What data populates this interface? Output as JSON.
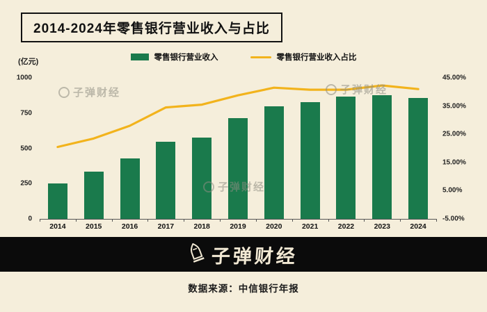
{
  "title": "2014-2024年零售银行营业收入与占比",
  "watermark_text": "子弹财经",
  "legend": {
    "bar": {
      "label": "零售银行营业收入",
      "color": "#1a7a4c"
    },
    "line": {
      "label": "零售银行营业收入占比",
      "color": "#f2b31c"
    }
  },
  "footer": {
    "logo_text": "子弹财经",
    "source": "数据来源：中信银行年报"
  },
  "chart_data": {
    "type": "bar",
    "title": "2014-2024年零售银行营业收入与占比",
    "categories": [
      "2014",
      "2015",
      "2016",
      "2017",
      "2018",
      "2019",
      "2020",
      "2021",
      "2022",
      "2023",
      "2024"
    ],
    "series": [
      {
        "name": "零售银行营业收入",
        "type": "bar",
        "axis": "left",
        "unit": "亿元",
        "values": [
          253,
          335,
          430,
          545,
          578,
          715,
          796,
          826,
          865,
          875,
          855
        ]
      },
      {
        "name": "零售银行营业收入占比",
        "type": "line",
        "axis": "right",
        "unit": "%",
        "values": [
          20.5,
          23.5,
          28.0,
          34.5,
          35.5,
          38.8,
          41.5,
          40.8,
          40.8,
          42.3,
          41.0
        ]
      }
    ],
    "left_axis": {
      "label": "(亿元)",
      "ticks": [
        "0",
        "250",
        "500",
        "750",
        "1000"
      ],
      "range": [
        0,
        1000
      ]
    },
    "right_axis": {
      "ticks": [
        "-5.00%",
        "5.00%",
        "15.00%",
        "25.00%",
        "35.00%",
        "45.00%"
      ],
      "range": [
        -5,
        45
      ]
    },
    "grid": false,
    "legend_position": "top"
  }
}
